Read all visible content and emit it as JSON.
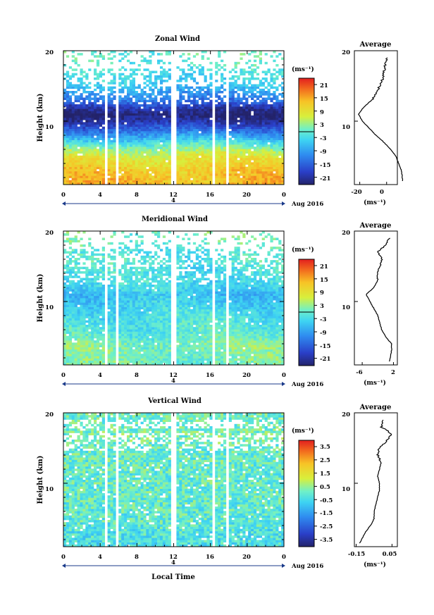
{
  "panels": [
    {
      "title": "Zonal Wind",
      "ylabel": "Height (km)",
      "ytick_labels": [
        "10",
        "20"
      ],
      "xtick_labels": [
        "0",
        "4",
        "8",
        "12",
        "16",
        "20",
        "0"
      ],
      "day_label": "4",
      "date_label": "Aug 2016",
      "xlabel": "",
      "colorbar_unit": "(ms⁻¹)",
      "colorbar_ticks": [
        "21",
        "15",
        "9",
        "3",
        "-3",
        "-9",
        "-15",
        "-21"
      ],
      "avg_title": "Average",
      "avg_ytick_labels": [
        "10",
        "20"
      ],
      "avg_xtick_labels": [
        "-20",
        "0"
      ],
      "avg_unit": "(ms⁻¹)"
    },
    {
      "title": "Meridional Wind",
      "ylabel": "Height (km)",
      "ytick_labels": [
        "10",
        "20"
      ],
      "xtick_labels": [
        "0",
        "4",
        "8",
        "12",
        "16",
        "20",
        "0"
      ],
      "day_label": "4",
      "date_label": "Aug 2016",
      "xlabel": "",
      "colorbar_unit": "(ms⁻¹)",
      "colorbar_ticks": [
        "21",
        "15",
        "9",
        "3",
        "-3",
        "-9",
        "-15",
        "-21"
      ],
      "avg_title": "Average",
      "avg_ytick_labels": [
        "10",
        "20"
      ],
      "avg_xtick_labels": [
        "-6",
        "2"
      ],
      "avg_unit": "(ms⁻¹)"
    },
    {
      "title": "Vertical Wind",
      "ylabel": "Height (km)",
      "ytick_labels": [
        "10",
        "20"
      ],
      "xtick_labels": [
        "0",
        "4",
        "8",
        "12",
        "16",
        "20",
        "0"
      ],
      "day_label": "4",
      "date_label": "Aug 2016",
      "xlabel": "Local Time",
      "colorbar_unit": "(ms⁻¹)",
      "colorbar_ticks": [
        "3.5",
        "2.5",
        "1.5",
        "0.5",
        "-0.5",
        "-1.5",
        "-2.5",
        "-3.5"
      ],
      "avg_title": "Average",
      "avg_ytick_labels": [
        "10",
        "20"
      ],
      "avg_xtick_labels": [
        "-0.15",
        "0.05"
      ],
      "avg_unit": "(ms⁻¹)"
    }
  ],
  "chart_data": [
    {
      "type": "heatmap",
      "title": "Zonal Wind",
      "xlabel": "",
      "ylabel": "Height (km)",
      "xlim": [
        0,
        24
      ],
      "ylim": [
        1,
        20
      ],
      "data_gaps_hours": [
        [
          4.5,
          4.8
        ],
        [
          5.7,
          6.0
        ],
        [
          11.8,
          12.2
        ],
        [
          16.3,
          16.6
        ],
        [
          17.6,
          17.9
        ]
      ],
      "color_range": [
        -21,
        21
      ],
      "profile_heights_km": [
        1.5,
        3,
        4,
        5,
        6,
        7,
        8,
        9,
        10,
        11,
        12,
        13,
        14,
        15,
        16,
        17,
        18,
        19
      ],
      "profile_values": [
        12,
        11,
        9,
        7,
        3,
        -2,
        -8,
        -13,
        -18,
        -21,
        -17,
        -11,
        -8,
        -5,
        -3,
        -2,
        -1,
        0
      ]
    },
    {
      "type": "heatmap",
      "title": "Meridional Wind",
      "xlabel": "",
      "ylabel": "Height (km)",
      "xlim": [
        0,
        24
      ],
      "ylim": [
        1,
        20
      ],
      "data_gaps_hours": [
        [
          4.5,
          4.8
        ],
        [
          5.7,
          6.0
        ],
        [
          11.8,
          12.2
        ],
        [
          16.3,
          16.6
        ],
        [
          17.6,
          17.9
        ]
      ],
      "color_range": [
        -21,
        21
      ],
      "profile_heights_km": [
        1.5,
        3,
        4,
        5,
        6,
        7,
        8,
        9,
        10,
        11,
        12,
        13,
        14,
        15,
        16,
        17,
        18,
        19
      ],
      "profile_values": [
        1,
        1.5,
        1.5,
        0,
        -1,
        -1.5,
        -2,
        -3,
        -4,
        -5,
        -3,
        -2,
        -2,
        -1.5,
        -1,
        -2,
        0,
        1
      ]
    },
    {
      "type": "heatmap",
      "title": "Vertical Wind",
      "xlabel": "Local Time",
      "ylabel": "Height (km)",
      "xlim": [
        0,
        24
      ],
      "ylim": [
        1,
        20
      ],
      "data_gaps_hours": [
        [
          4.5,
          4.8
        ],
        [
          5.7,
          6.0
        ],
        [
          11.8,
          12.2
        ],
        [
          16.3,
          16.6
        ],
        [
          17.6,
          17.9
        ]
      ],
      "color_range": [
        -3.5,
        3.5
      ],
      "profile_heights_km": [
        1.5,
        3,
        4,
        5,
        6,
        7,
        8,
        9,
        10,
        11,
        12,
        13,
        14,
        15,
        16,
        17,
        18,
        19
      ],
      "profile_values": [
        -0.13,
        -0.1,
        -0.07,
        -0.05,
        -0.05,
        -0.04,
        -0.03,
        -0.02,
        -0.02,
        -0.03,
        -0.02,
        -0.01,
        -0.03,
        -0.02,
        0.02,
        0.05,
        -0.01,
        0.0
      ]
    }
  ]
}
